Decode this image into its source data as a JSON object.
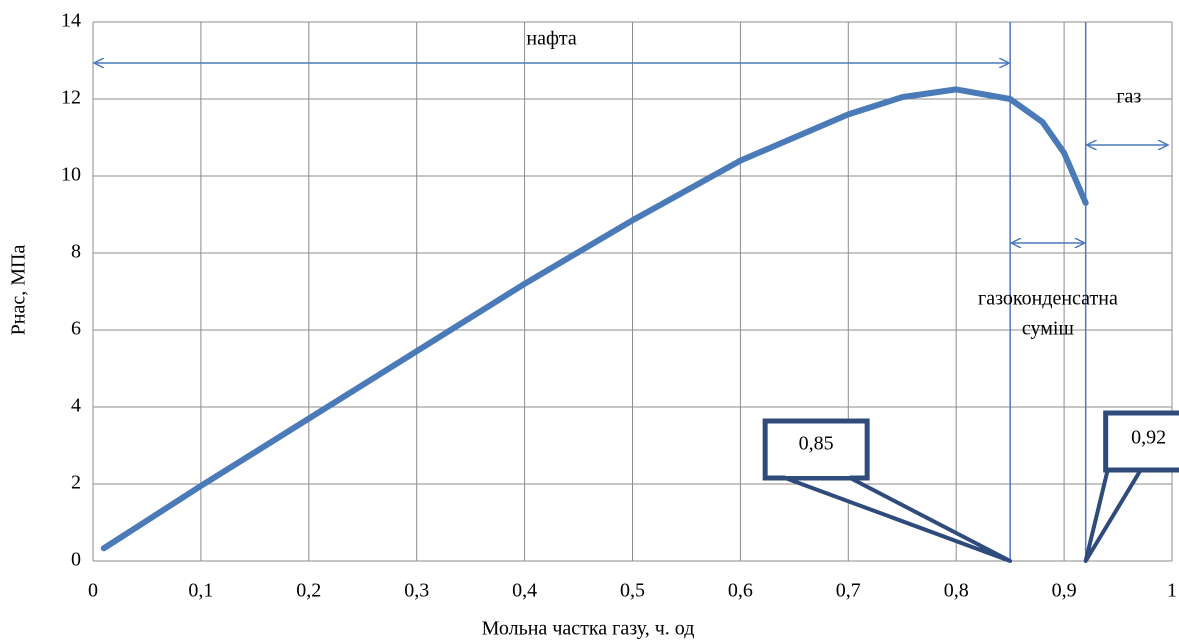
{
  "chart_data": {
    "type": "line",
    "x_label": "Мольна частка газу, ч. од",
    "y_label": "Рнас, МПа",
    "x": [
      0.01,
      0.1,
      0.2,
      0.3,
      0.4,
      0.5,
      0.6,
      0.7,
      0.75,
      0.8,
      0.85,
      0.88,
      0.9,
      0.92
    ],
    "values": [
      0.33,
      1.95,
      3.7,
      5.45,
      7.2,
      8.85,
      10.4,
      11.6,
      12.05,
      12.25,
      12.0,
      11.4,
      10.6,
      9.3
    ],
    "color": "#4a7ab8",
    "xlim": [
      0,
      1
    ],
    "ylim": [
      0,
      14
    ],
    "xticks": [
      0,
      {
        "value": 0.1,
        "label": "0,1"
      },
      {
        "value": 0.2,
        "label": "0,2"
      },
      {
        "value": 0.3,
        "label": "0,3"
      },
      {
        "value": 0.4,
        "label": "0,4"
      },
      {
        "value": 0.5,
        "label": "0,5"
      },
      {
        "value": 0.6,
        "label": "0,6"
      },
      {
        "value": 0.7,
        "label": "0,7"
      },
      {
        "value": 0.8,
        "label": "0,8"
      },
      {
        "value": 0.9,
        "label": "0,9"
      },
      1
    ],
    "yticks": [
      0,
      2,
      4,
      6,
      8,
      10,
      12,
      14
    ],
    "grid": true,
    "boundaries": [
      {
        "value": 0.85,
        "label": "0,85"
      },
      {
        "value": 0.92,
        "label": "0,92"
      }
    ],
    "regions": [
      "нафта",
      "газоконденсатна",
      "суміш",
      "газ"
    ]
  }
}
